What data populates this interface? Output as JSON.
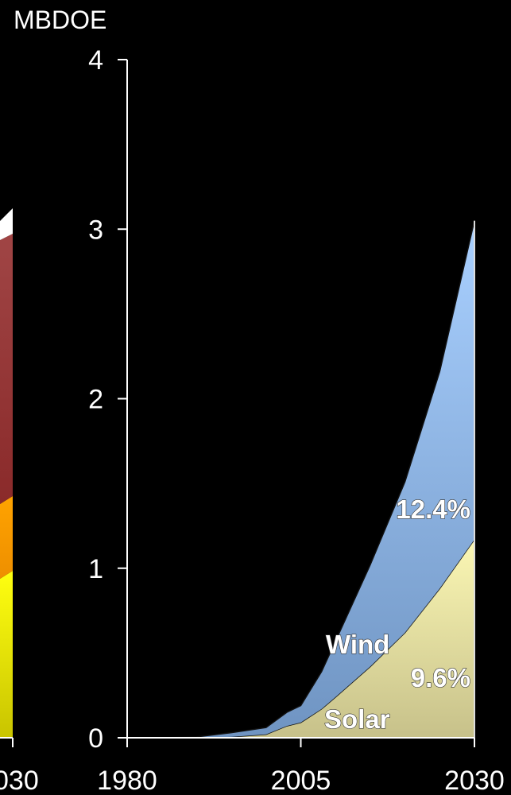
{
  "chart_data": {
    "type": "area",
    "stacked": true,
    "unit_label": "MBDOE",
    "ylim": [
      0,
      4
    ],
    "y_ticks": [
      "0",
      "1",
      "2",
      "3",
      "4"
    ],
    "x_ticks": [
      "1980",
      "2005",
      "2030"
    ],
    "left_clipped_tick": "030",
    "xlim": [
      1980,
      2030
    ],
    "x": [
      1980,
      1985,
      1990,
      1995,
      2000,
      2003,
      2005,
      2008,
      2010,
      2015,
      2020,
      2025,
      2030
    ],
    "series": [
      {
        "name": "Solar",
        "growth_label": "9.6%",
        "color": "#f4f0a0",
        "values": [
          0,
          0,
          0,
          0.005,
          0.02,
          0.07,
          0.09,
          0.17,
          0.24,
          0.42,
          0.62,
          0.88,
          1.17
        ]
      },
      {
        "name": "Wind",
        "growth_label": "12.4%",
        "color": "#8fb8e6",
        "values": [
          0,
          0,
          0.005,
          0.025,
          0.04,
          0.08,
          0.1,
          0.22,
          0.33,
          0.6,
          0.89,
          1.28,
          1.88
        ]
      }
    ],
    "left_partial_chart": {
      "colors": [
        "#ffffff",
        "#9b3a3a",
        "#f59b00",
        "#f3f000"
      ]
    },
    "grid": false
  }
}
